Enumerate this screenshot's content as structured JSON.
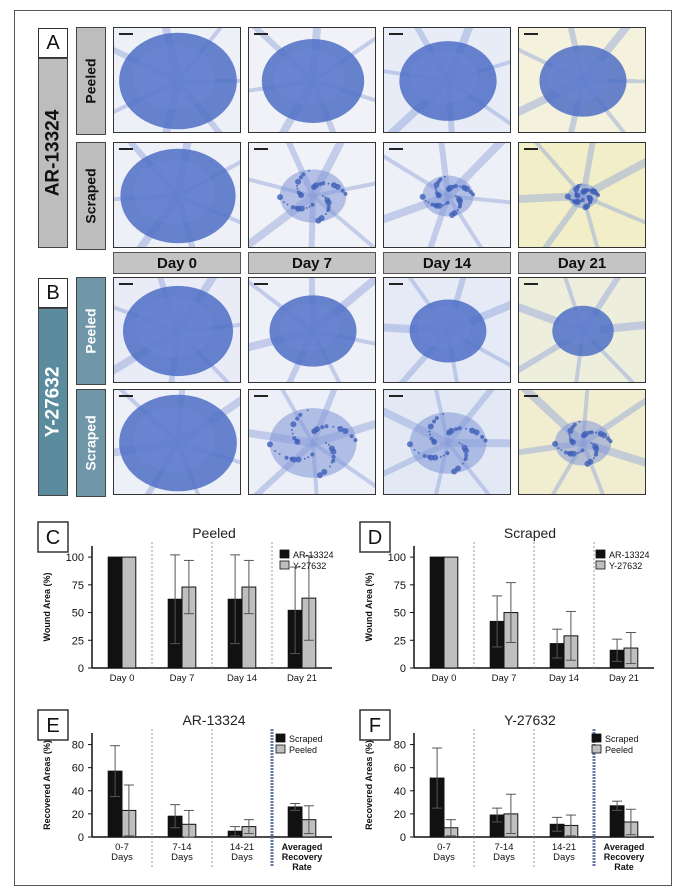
{
  "panels": {
    "A": "A",
    "B": "B",
    "C": "C",
    "D": "D",
    "E": "E",
    "F": "F"
  },
  "micrographs": {
    "drugs": [
      "AR-13324",
      "Y-27632"
    ],
    "conditions": [
      "Peeled",
      "Scraped"
    ],
    "days": [
      "Day 0",
      "Day 7",
      "Day 14",
      "Day 21"
    ]
  },
  "colors": {
    "black_bar": "#111111",
    "gray_bar": "#bfbfbf",
    "teal_label": "#5a8c9e",
    "stain_blue": "#4a6fc4"
  },
  "chart_data": [
    {
      "id": "C",
      "type": "bar",
      "title": "Peeled",
      "ylabel": "Wound Area (%)",
      "xlabel": "",
      "categories": [
        "Day 0",
        "Day 7",
        "Day 14",
        "Day 21"
      ],
      "ylim": [
        0,
        110
      ],
      "yticks": [
        0,
        25,
        50,
        75,
        100
      ],
      "legend_position": "top-right",
      "series": [
        {
          "name": "AR-13324",
          "values": [
            100,
            62,
            62,
            52
          ],
          "errors": [
            0,
            40,
            40,
            39
          ]
        },
        {
          "name": "Y-27632",
          "values": [
            100,
            73,
            73,
            63
          ],
          "errors": [
            0,
            24,
            24,
            38
          ]
        }
      ]
    },
    {
      "id": "D",
      "type": "bar",
      "title": "Scraped",
      "ylabel": "Wound Area (%)",
      "xlabel": "",
      "categories": [
        "Day 0",
        "Day 7",
        "Day 14",
        "Day 21"
      ],
      "ylim": [
        0,
        110
      ],
      "yticks": [
        0,
        25,
        50,
        75,
        100
      ],
      "legend_position": "top-right",
      "series": [
        {
          "name": "AR-13324",
          "values": [
            100,
            42,
            22,
            16
          ],
          "errors": [
            0,
            23,
            13,
            10
          ]
        },
        {
          "name": "Y-27632",
          "values": [
            100,
            50,
            29,
            18
          ],
          "errors": [
            0,
            27,
            22,
            14
          ]
        }
      ]
    },
    {
      "id": "E",
      "type": "bar",
      "title": "AR-13324",
      "ylabel": "Recovered Areas (%)",
      "xlabel": "",
      "categories": [
        "0-7\nDays",
        "7-14\nDays",
        "14-21\nDays",
        "Averaged\nRecovery\nRate"
      ],
      "ylim": [
        0,
        90
      ],
      "yticks": [
        0,
        20,
        40,
        60,
        80
      ],
      "legend_position": "top-right",
      "series": [
        {
          "name": "Scraped",
          "values": [
            57,
            18,
            5,
            26
          ],
          "errors": [
            22,
            10,
            4,
            3
          ]
        },
        {
          "name": "Peeled",
          "values": [
            23,
            11,
            9,
            15
          ],
          "errors": [
            22,
            12,
            6,
            12
          ]
        }
      ]
    },
    {
      "id": "F",
      "type": "bar",
      "title": "Y-27632",
      "ylabel": "Recovered Areas (%)",
      "xlabel": "",
      "categories": [
        "0-7\nDays",
        "7-14\nDays",
        "14-21\nDays",
        "Averaged\nRecovery\nRate"
      ],
      "ylim": [
        0,
        90
      ],
      "yticks": [
        0,
        20,
        40,
        60,
        80
      ],
      "legend_position": "top-right",
      "series": [
        {
          "name": "Scraped",
          "values": [
            51,
            19,
            11,
            27
          ],
          "errors": [
            26,
            6,
            6,
            4
          ]
        },
        {
          "name": "Peeled",
          "values": [
            8,
            20,
            10,
            13
          ],
          "errors": [
            7,
            17,
            9,
            11
          ]
        }
      ]
    }
  ]
}
